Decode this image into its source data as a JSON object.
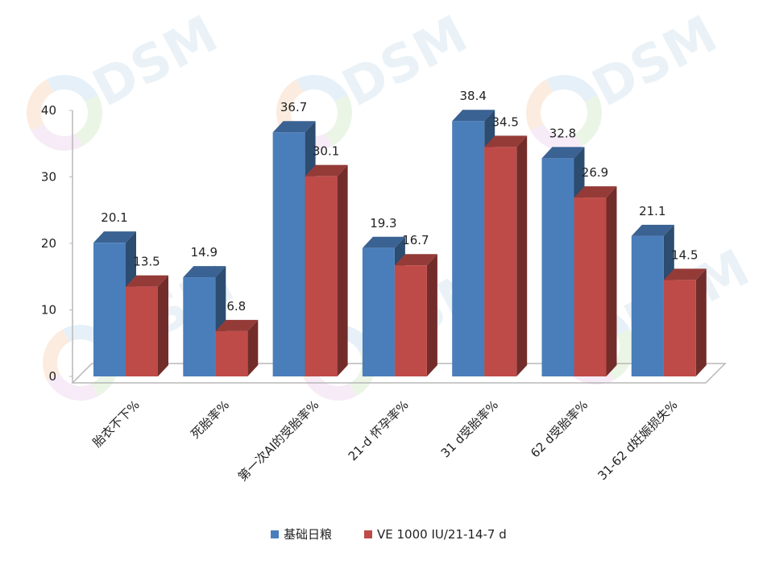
{
  "chart_data": {
    "type": "bar",
    "title": "",
    "xlabel": "",
    "ylabel": "",
    "ylim": [
      0,
      40
    ],
    "yticks": [
      "0",
      "10",
      "20",
      "30",
      "40"
    ],
    "grid": false,
    "legend_position": "bottom",
    "categories": [
      "胎衣不下%",
      "死胎率%",
      "第一次AI的受胎率%",
      "21-d 怀孕率%",
      "31 d受胎率%",
      "62 d受胎率%",
      "31-62 d妊娠损失%"
    ],
    "series": [
      {
        "name": "基础日粮",
        "color": "#4a7ebb",
        "values": [
          20.1,
          14.9,
          36.7,
          19.3,
          38.4,
          32.8,
          21.1
        ]
      },
      {
        "name": "VE 1000 IU/21-14-7 d",
        "color": "#be4b48",
        "values": [
          13.5,
          6.8,
          30.1,
          16.7,
          34.5,
          26.9,
          14.5
        ]
      }
    ]
  },
  "watermark": {
    "text": "DSM"
  }
}
